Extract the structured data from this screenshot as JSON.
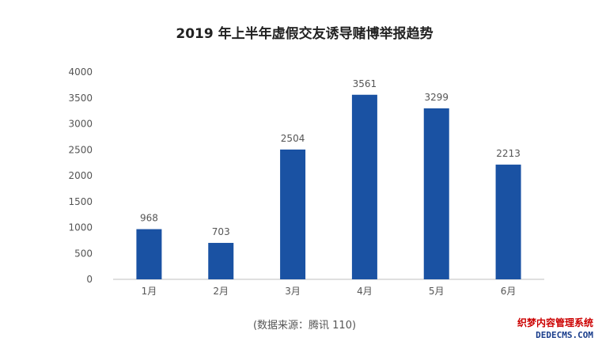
{
  "chart_data": {
    "type": "bar",
    "title": "2019 年上半年虚假交友诱导赌博举报趋势",
    "categories": [
      "1月",
      "2月",
      "3月",
      "4月",
      "5月",
      "6月"
    ],
    "values": [
      968,
      703,
      2504,
      3561,
      3299,
      2213
    ],
    "data_labels": [
      "968",
      "703",
      "2504",
      "3561",
      "3299",
      "2213"
    ],
    "y_ticks": [
      "0",
      "500",
      "1000",
      "1500",
      "2000",
      "2500",
      "3000",
      "3500",
      "4000"
    ],
    "ylim": [
      0,
      4000
    ],
    "xlabel": "",
    "ylabel": "",
    "grid": false,
    "legend": "none",
    "bar_color": "#1a52a3"
  },
  "source": "(数据来源：腾讯 110)",
  "watermark": {
    "line1": "织梦内容管理系统",
    "line2": "DEDECMS.COM"
  }
}
